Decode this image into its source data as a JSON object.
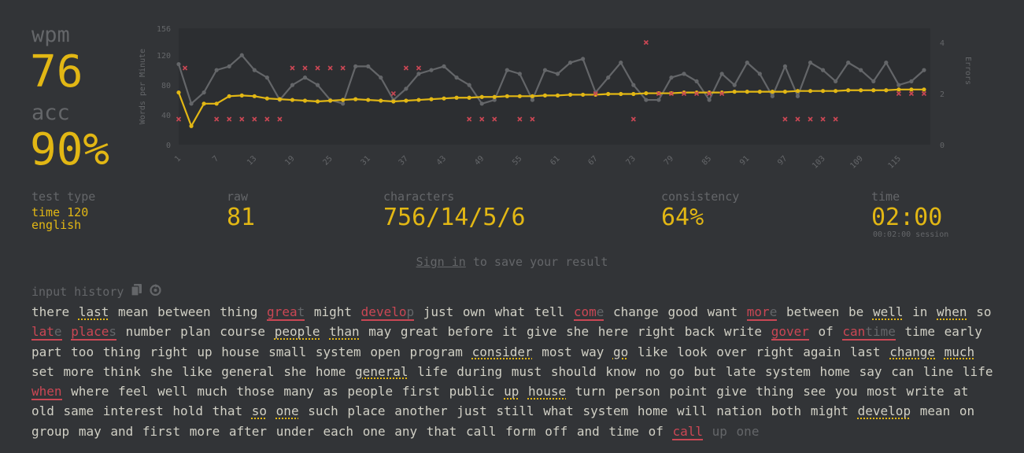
{
  "wpm": {
    "label": "wpm",
    "value": "76"
  },
  "acc": {
    "label": "acc",
    "value": "90%"
  },
  "chart_data": {
    "type": "line",
    "ylabel": "Words per Minute",
    "y2label": "Errors",
    "ylim": [
      0,
      156
    ],
    "yticks": [
      "156",
      "120",
      "80",
      "40",
      "0"
    ],
    "y2lim": [
      0,
      4
    ],
    "y2ticks": [
      "4",
      "2",
      "0"
    ],
    "xlim": [
      1,
      120
    ],
    "xticks": [
      "1",
      "7",
      "13",
      "19",
      "25",
      "31",
      "37",
      "43",
      "49",
      "55",
      "61",
      "67",
      "73",
      "79",
      "85",
      "91",
      "97",
      "103",
      "109",
      "115"
    ],
    "grid": false,
    "series": [
      {
        "name": "raw",
        "color": "#646669",
        "x": [
          1,
          3,
          5,
          7,
          9,
          11,
          13,
          15,
          17,
          19,
          21,
          23,
          25,
          27,
          29,
          31,
          33,
          35,
          37,
          39,
          41,
          43,
          45,
          47,
          49,
          51,
          53,
          55,
          57,
          59,
          61,
          63,
          65,
          67,
          69,
          71,
          73,
          75,
          77,
          79,
          81,
          83,
          85,
          87,
          89,
          91,
          93,
          95,
          97,
          99,
          101,
          103,
          105,
          107,
          109,
          111,
          113,
          115,
          117,
          119
        ],
        "values": [
          108,
          55,
          70,
          100,
          105,
          120,
          100,
          90,
          60,
          80,
          90,
          80,
          60,
          55,
          105,
          105,
          90,
          60,
          75,
          95,
          100,
          105,
          90,
          80,
          55,
          60,
          100,
          95,
          60,
          100,
          95,
          110,
          115,
          70,
          90,
          110,
          80,
          60,
          60,
          90,
          95,
          85,
          60,
          95,
          80,
          110,
          95,
          65,
          105,
          65,
          110,
          100,
          85,
          110,
          100,
          85,
          110,
          80,
          85,
          100
        ]
      },
      {
        "name": "wpm",
        "color": "#e2b714",
        "x": [
          1,
          3,
          5,
          7,
          9,
          11,
          13,
          15,
          17,
          19,
          21,
          23,
          25,
          27,
          29,
          31,
          33,
          35,
          37,
          39,
          41,
          43,
          45,
          47,
          49,
          51,
          53,
          55,
          57,
          59,
          61,
          63,
          65,
          67,
          69,
          71,
          73,
          75,
          77,
          79,
          81,
          83,
          85,
          87,
          89,
          91,
          93,
          95,
          97,
          99,
          101,
          103,
          105,
          107,
          109,
          111,
          113,
          115,
          117,
          119
        ],
        "values": [
          70,
          25,
          55,
          55,
          65,
          66,
          65,
          62,
          61,
          60,
          59,
          58,
          59,
          60,
          61,
          60,
          59,
          58,
          59,
          60,
          61,
          62,
          63,
          63,
          64,
          64,
          65,
          65,
          65,
          66,
          66,
          67,
          67,
          67,
          68,
          68,
          68,
          69,
          69,
          69,
          70,
          70,
          70,
          70,
          71,
          71,
          71,
          71,
          71,
          72,
          72,
          72,
          72,
          73,
          73,
          73,
          73,
          74,
          74,
          74
        ]
      },
      {
        "name": "errors",
        "color": "#ca4754",
        "style": "x",
        "x": [
          1,
          2,
          7,
          9,
          11,
          13,
          15,
          17,
          19,
          21,
          23,
          25,
          27,
          35,
          37,
          39,
          47,
          49,
          51,
          55,
          57,
          67,
          73,
          75,
          77,
          79,
          81,
          83,
          85,
          87,
          97,
          99,
          101,
          103,
          105,
          115,
          117,
          119
        ],
        "values": [
          1,
          3,
          1,
          1,
          1,
          1,
          1,
          1,
          3,
          3,
          3,
          3,
          3,
          2,
          3,
          3,
          1,
          1,
          1,
          1,
          1,
          2,
          1,
          4,
          2,
          2,
          2,
          2,
          2,
          2,
          1,
          1,
          1,
          1,
          1,
          2,
          2,
          2
        ]
      }
    ]
  },
  "stats": {
    "test_type": {
      "label": "test type",
      "line1": "time 120",
      "line2": "english"
    },
    "raw": {
      "label": "raw",
      "value": "81"
    },
    "characters": {
      "label": "characters",
      "value": "756/14/5/6"
    },
    "consistency": {
      "label": "consistency",
      "value": "64%"
    },
    "time": {
      "label": "time",
      "value": "02:00",
      "session": "00:02:00 session"
    }
  },
  "signin": {
    "link": "Sign in",
    "text": " to save your result"
  },
  "history": {
    "label": "input history",
    "copy_icon": "copy-icon",
    "replay_icon": "history-icon",
    "lines": [
      [
        {
          "t": "there"
        },
        {
          "t": "last",
          "c": "ul"
        },
        {
          "t": "mean"
        },
        {
          "t": "between"
        },
        {
          "t": "thing"
        },
        {
          "t": "grea",
          "x": "t",
          "c": "err"
        },
        {
          "t": "might"
        },
        {
          "t": "develo",
          "x": "p",
          "c": "err"
        },
        {
          "t": "just"
        },
        {
          "t": "own"
        },
        {
          "t": "what"
        },
        {
          "t": "tell"
        },
        {
          "t": "com",
          "x": "e",
          "c": "err"
        },
        {
          "t": "change"
        },
        {
          "t": "good"
        },
        {
          "t": "want"
        },
        {
          "t": "mor",
          "x": "e",
          "c": "err"
        },
        {
          "t": "between"
        },
        {
          "t": "be"
        },
        {
          "t": "well",
          "c": "ul"
        },
        {
          "t": "in"
        },
        {
          "t": "when",
          "c": "ul"
        },
        {
          "t": "so"
        }
      ],
      [
        {
          "t": "lat",
          "x": "e",
          "c": "err"
        },
        {
          "t": "place",
          "x": "s",
          "c": "err"
        },
        {
          "t": "number"
        },
        {
          "t": "plan"
        },
        {
          "t": "course"
        },
        {
          "t": "people",
          "c": "ul"
        },
        {
          "t": "than",
          "c": "ul"
        },
        {
          "t": "may"
        },
        {
          "t": "great"
        },
        {
          "t": "before"
        },
        {
          "t": "it"
        },
        {
          "t": "give"
        },
        {
          "t": "she"
        },
        {
          "t": "here"
        },
        {
          "t": "right"
        },
        {
          "t": "back"
        },
        {
          "t": "write"
        },
        {
          "t": "gover",
          "c": "err"
        },
        {
          "t": "of"
        },
        {
          "t": "can",
          "x": "time",
          "c": "err"
        },
        {
          "t": "time"
        },
        {
          "t": "early"
        }
      ],
      [
        {
          "t": "part"
        },
        {
          "t": "too"
        },
        {
          "t": "thing"
        },
        {
          "t": "right"
        },
        {
          "t": "up"
        },
        {
          "t": "house"
        },
        {
          "t": "small"
        },
        {
          "t": "system"
        },
        {
          "t": "open"
        },
        {
          "t": "program"
        },
        {
          "t": "consider",
          "c": "ul"
        },
        {
          "t": "most"
        },
        {
          "t": "way"
        },
        {
          "t": "go",
          "c": "ul"
        },
        {
          "t": "like"
        },
        {
          "t": "look"
        },
        {
          "t": "over"
        },
        {
          "t": "right"
        },
        {
          "t": "again"
        },
        {
          "t": "last"
        },
        {
          "t": "change",
          "c": "ul"
        },
        {
          "t": "much",
          "c": "ul"
        }
      ],
      [
        {
          "t": "set"
        },
        {
          "t": "more"
        },
        {
          "t": "think"
        },
        {
          "t": "she"
        },
        {
          "t": "like"
        },
        {
          "t": "general"
        },
        {
          "t": "she"
        },
        {
          "t": "home"
        },
        {
          "t": "general",
          "c": "ul"
        },
        {
          "t": "life"
        },
        {
          "t": "during"
        },
        {
          "t": "must"
        },
        {
          "t": "should"
        },
        {
          "t": "know"
        },
        {
          "t": "no"
        },
        {
          "t": "go"
        },
        {
          "t": "but"
        },
        {
          "t": "late"
        },
        {
          "t": "system"
        },
        {
          "t": "home"
        },
        {
          "t": "say"
        },
        {
          "t": "can"
        },
        {
          "t": "line"
        },
        {
          "t": "life"
        }
      ],
      [
        {
          "t": "when",
          "c": "err"
        },
        {
          "t": "where"
        },
        {
          "t": "feel"
        },
        {
          "t": "well"
        },
        {
          "t": "much"
        },
        {
          "t": "those"
        },
        {
          "t": "many"
        },
        {
          "t": "as"
        },
        {
          "t": "people"
        },
        {
          "t": "first"
        },
        {
          "t": "public"
        },
        {
          "t": "up",
          "c": "ul"
        },
        {
          "t": "house",
          "c": "ul"
        },
        {
          "t": "turn"
        },
        {
          "t": "person"
        },
        {
          "t": "point"
        },
        {
          "t": "give"
        },
        {
          "t": "thing"
        },
        {
          "t": "see"
        },
        {
          "t": "you"
        },
        {
          "t": "most"
        },
        {
          "t": "write"
        },
        {
          "t": "at"
        }
      ],
      [
        {
          "t": "old"
        },
        {
          "t": "same"
        },
        {
          "t": "interest"
        },
        {
          "t": "hold"
        },
        {
          "t": "that"
        },
        {
          "t": "so",
          "c": "ul"
        },
        {
          "t": "one",
          "c": "ul"
        },
        {
          "t": "such"
        },
        {
          "t": "place"
        },
        {
          "t": "another"
        },
        {
          "t": "just"
        },
        {
          "t": "still"
        },
        {
          "t": "what"
        },
        {
          "t": "system"
        },
        {
          "t": "home"
        },
        {
          "t": "will"
        },
        {
          "t": "nation"
        },
        {
          "t": "both"
        },
        {
          "t": "might"
        },
        {
          "t": "develop",
          "c": "ul"
        },
        {
          "t": "mean"
        },
        {
          "t": "on"
        }
      ],
      [
        {
          "t": "group"
        },
        {
          "t": "may"
        },
        {
          "t": "and"
        },
        {
          "t": "first"
        },
        {
          "t": "more"
        },
        {
          "t": "after"
        },
        {
          "t": "under"
        },
        {
          "t": "each"
        },
        {
          "t": "one"
        },
        {
          "t": "any"
        },
        {
          "t": "that"
        },
        {
          "t": "call"
        },
        {
          "t": "form"
        },
        {
          "t": "off"
        },
        {
          "t": "and"
        },
        {
          "t": "time"
        },
        {
          "t": "of"
        },
        {
          "t": "call",
          "c": "err"
        },
        {
          "t": "up",
          "c": "untyped"
        },
        {
          "t": "one",
          "c": "untyped"
        }
      ]
    ]
  }
}
